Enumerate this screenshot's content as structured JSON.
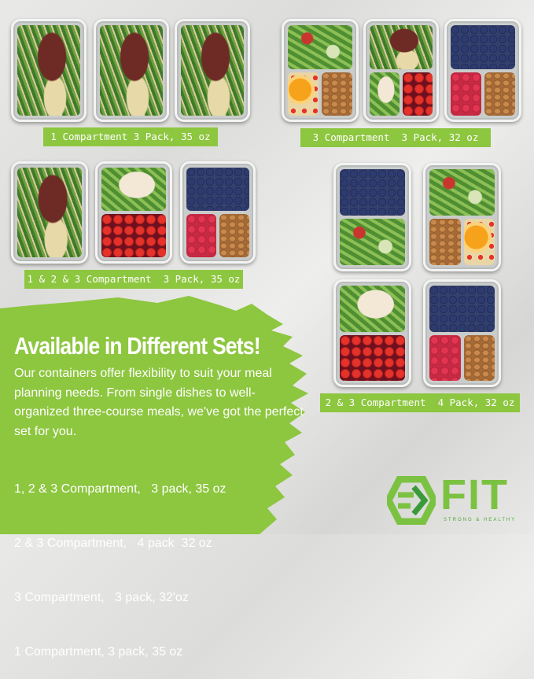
{
  "colors": {
    "brand_green": "#8dc63f",
    "logo_green": "#7cc242"
  },
  "sets": [
    {
      "label": "1 Compartment 3 Pack, 35 oz",
      "containers": [
        "one",
        "one",
        "one"
      ]
    },
    {
      "label": "3 Compartment  3 Pack, 32 oz",
      "containers": [
        "three",
        "three",
        "three"
      ]
    },
    {
      "label": "1 & 2 & 3 Compartment  3 Pack, 35 oz",
      "containers": [
        "one",
        "two",
        "three"
      ]
    },
    {
      "label": "2 & 3 Compartment  4 Pack, 32 oz",
      "containers": [
        "two",
        "three",
        "two",
        "three"
      ]
    }
  ],
  "promo": {
    "heading": "Available in Different Sets!",
    "body": "Our containers offer flexibility to suit your meal planning needs. From single dishes to well-organized three-course meals, we've got the perfect set for you.",
    "list": [
      "1, 2 & 3 Compartment,   3 pack, 35 oz",
      "2 & 3 Compartment,   4 pack  32 oz",
      "3 Compartment,   3 pack, 32'oz",
      "1 Compartment, 3 pack, 35 oz"
    ]
  },
  "logo": {
    "name": "FIT",
    "tagline": "STRONG & HEALTHY",
    "icon": "fit-hexagon-logo-icon"
  }
}
